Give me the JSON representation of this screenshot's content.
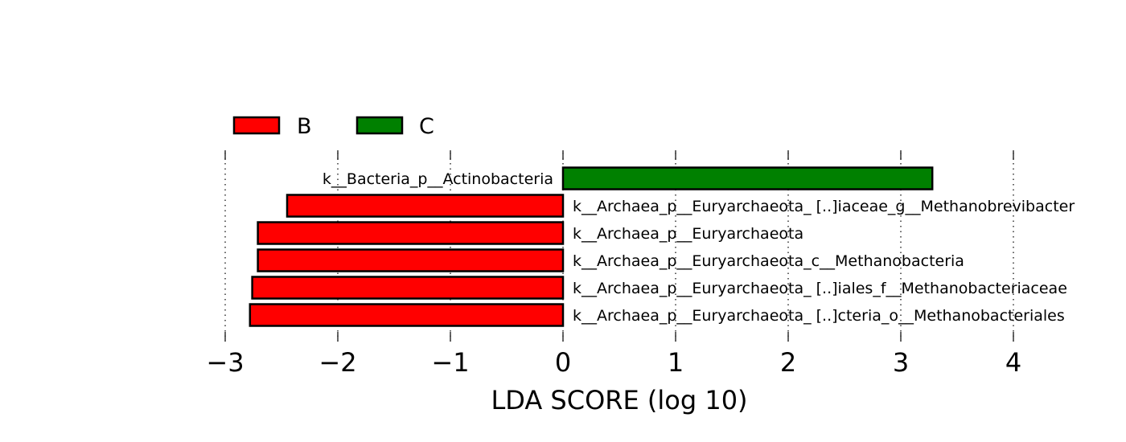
{
  "chart_data": {
    "type": "bar",
    "orientation": "horizontal",
    "xlabel": "LDA SCORE (log 10)",
    "xlim": [
      -3,
      4
    ],
    "x_ticks": [
      -3,
      -2,
      -1,
      0,
      1,
      2,
      3,
      4
    ],
    "x_tick_labels": [
      "−3",
      "−2",
      "−1",
      "0",
      "1",
      "2",
      "3",
      "4"
    ],
    "grid": "vertical-dotted",
    "legend": {
      "position": "top-left",
      "entries": [
        {
          "name": "B",
          "color": "#ff0000"
        },
        {
          "name": "C",
          "color": "#008000"
        }
      ]
    },
    "bars": [
      {
        "label": "k__Bacteria_p__Actinobacteria",
        "value": 3.28,
        "group": "C"
      },
      {
        "label": "k__Archaea_p__Euryarchaeota_ [..]iaceae_g__Methanobrevibacter",
        "value": -2.45,
        "group": "B"
      },
      {
        "label": "k__Archaea_p__Euryarchaeota",
        "value": -2.71,
        "group": "B"
      },
      {
        "label": "k__Archaea_p__Euryarchaeota_c__Methanobacteria",
        "value": -2.71,
        "group": "B"
      },
      {
        "label": "k__Archaea_p__Euryarchaeota_ [..]iales_f__Methanobacteriaceae",
        "value": -2.76,
        "group": "B"
      },
      {
        "label": "k__Archaea_p__Euryarchaeota_ [..]cteria_o__Methanobacteriales",
        "value": -2.78,
        "group": "B"
      }
    ]
  }
}
